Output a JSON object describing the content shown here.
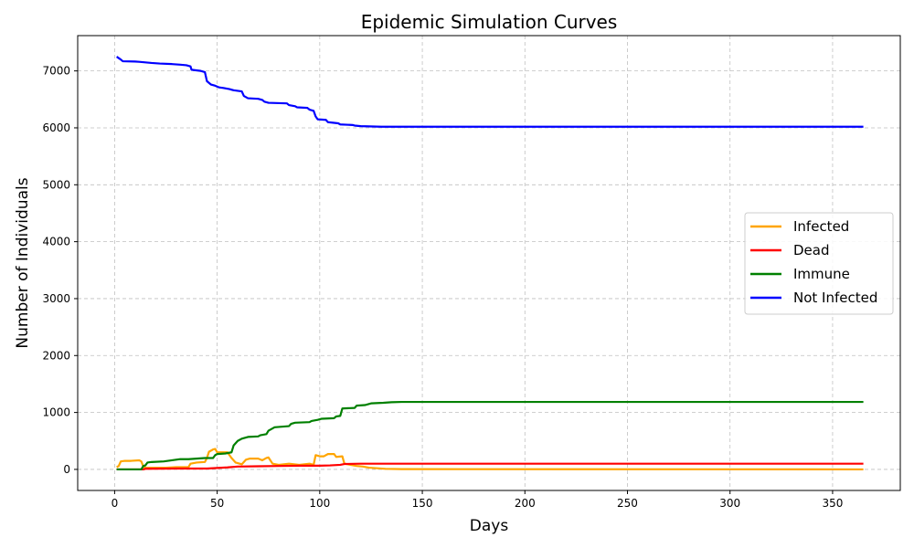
{
  "chart_data": {
    "type": "line",
    "title": "Epidemic Simulation Curves",
    "xlabel": "Days",
    "ylabel": "Number of Individuals",
    "xlim": [
      -18,
      383
    ],
    "ylim": [
      -370,
      7620
    ],
    "xticks": [
      0,
      50,
      100,
      150,
      200,
      250,
      300,
      350
    ],
    "yticks": [
      0,
      1000,
      2000,
      3000,
      4000,
      5000,
      6000,
      7000
    ],
    "grid": true,
    "legend_position": "right",
    "series": [
      {
        "name": "Infected",
        "color": "#ffa500",
        "points": [
          [
            1,
            40
          ],
          [
            2,
            60
          ],
          [
            3,
            140
          ],
          [
            5,
            150
          ],
          [
            8,
            150
          ],
          [
            12,
            160
          ],
          [
            13,
            140
          ],
          [
            14,
            50
          ],
          [
            15,
            30
          ],
          [
            20,
            30
          ],
          [
            25,
            30
          ],
          [
            30,
            40
          ],
          [
            36,
            40
          ],
          [
            37,
            100
          ],
          [
            40,
            120
          ],
          [
            44,
            130
          ],
          [
            45,
            200
          ],
          [
            46,
            310
          ],
          [
            48,
            350
          ],
          [
            49,
            360
          ],
          [
            50,
            300
          ],
          [
            55,
            300
          ],
          [
            56,
            250
          ],
          [
            57,
            200
          ],
          [
            59,
            120
          ],
          [
            62,
            90
          ],
          [
            64,
            170
          ],
          [
            66,
            190
          ],
          [
            70,
            190
          ],
          [
            72,
            160
          ],
          [
            74,
            200
          ],
          [
            75,
            210
          ],
          [
            77,
            100
          ],
          [
            80,
            80
          ],
          [
            85,
            100
          ],
          [
            90,
            80
          ],
          [
            95,
            100
          ],
          [
            97,
            80
          ],
          [
            98,
            250
          ],
          [
            100,
            230
          ],
          [
            102,
            230
          ],
          [
            104,
            270
          ],
          [
            107,
            270
          ],
          [
            108,
            220
          ],
          [
            111,
            230
          ],
          [
            112,
            100
          ],
          [
            115,
            80
          ],
          [
            118,
            60
          ],
          [
            121,
            50
          ],
          [
            124,
            30
          ],
          [
            128,
            20
          ],
          [
            132,
            10
          ],
          [
            140,
            5
          ],
          [
            365,
            0
          ]
        ]
      },
      {
        "name": "Dead",
        "color": "#ff0000",
        "points": [
          [
            1,
            0
          ],
          [
            14,
            0
          ],
          [
            15,
            10
          ],
          [
            30,
            15
          ],
          [
            45,
            15
          ],
          [
            50,
            25
          ],
          [
            55,
            35
          ],
          [
            60,
            50
          ],
          [
            70,
            55
          ],
          [
            80,
            60
          ],
          [
            90,
            65
          ],
          [
            100,
            65
          ],
          [
            105,
            70
          ],
          [
            110,
            80
          ],
          [
            112,
            95
          ],
          [
            120,
            100
          ],
          [
            365,
            100
          ]
        ]
      },
      {
        "name": "Immune",
        "color": "#008000",
        "points": [
          [
            1,
            0
          ],
          [
            13,
            0
          ],
          [
            14,
            60
          ],
          [
            15,
            70
          ],
          [
            16,
            120
          ],
          [
            18,
            130
          ],
          [
            24,
            140
          ],
          [
            28,
            160
          ],
          [
            32,
            180
          ],
          [
            36,
            180
          ],
          [
            40,
            190
          ],
          [
            44,
            200
          ],
          [
            48,
            200
          ],
          [
            49,
            250
          ],
          [
            50,
            270
          ],
          [
            54,
            280
          ],
          [
            57,
            300
          ],
          [
            58,
            420
          ],
          [
            60,
            500
          ],
          [
            62,
            540
          ],
          [
            65,
            570
          ],
          [
            70,
            580
          ],
          [
            71,
            600
          ],
          [
            74,
            620
          ],
          [
            75,
            680
          ],
          [
            78,
            740
          ],
          [
            85,
            760
          ],
          [
            86,
            800
          ],
          [
            88,
            820
          ],
          [
            95,
            830
          ],
          [
            96,
            850
          ],
          [
            99,
            870
          ],
          [
            101,
            890
          ],
          [
            107,
            900
          ],
          [
            108,
            930
          ],
          [
            110,
            940
          ],
          [
            111,
            1070
          ],
          [
            117,
            1080
          ],
          [
            118,
            1120
          ],
          [
            122,
            1130
          ],
          [
            125,
            1160
          ],
          [
            131,
            1170
          ],
          [
            135,
            1180
          ],
          [
            140,
            1185
          ],
          [
            365,
            1185
          ]
        ]
      },
      {
        "name": "Not Infected",
        "color": "#0000ff",
        "points": [
          [
            1,
            7250
          ],
          [
            3,
            7200
          ],
          [
            4,
            7170
          ],
          [
            10,
            7165
          ],
          [
            12,
            7160
          ],
          [
            15,
            7150
          ],
          [
            18,
            7140
          ],
          [
            22,
            7130
          ],
          [
            28,
            7120
          ],
          [
            32,
            7110
          ],
          [
            35,
            7100
          ],
          [
            37,
            7080
          ],
          [
            37.5,
            7020
          ],
          [
            42,
            7000
          ],
          [
            44,
            6980
          ],
          [
            45,
            6820
          ],
          [
            47,
            6760
          ],
          [
            49,
            6740
          ],
          [
            51,
            6710
          ],
          [
            53,
            6700
          ],
          [
            56,
            6680
          ],
          [
            58,
            6660
          ],
          [
            62,
            6640
          ],
          [
            63,
            6560
          ],
          [
            65,
            6520
          ],
          [
            70,
            6510
          ],
          [
            72,
            6490
          ],
          [
            73,
            6460
          ],
          [
            75,
            6440
          ],
          [
            84,
            6430
          ],
          [
            85,
            6400
          ],
          [
            88,
            6380
          ],
          [
            89,
            6360
          ],
          [
            94,
            6350
          ],
          [
            95,
            6320
          ],
          [
            97,
            6300
          ],
          [
            98,
            6200
          ],
          [
            99,
            6150
          ],
          [
            103,
            6140
          ],
          [
            104,
            6100
          ],
          [
            109,
            6080
          ],
          [
            110,
            6060
          ],
          [
            116,
            6050
          ],
          [
            117,
            6040
          ],
          [
            120,
            6030
          ],
          [
            130,
            6020
          ],
          [
            365,
            6020
          ]
        ]
      }
    ]
  }
}
